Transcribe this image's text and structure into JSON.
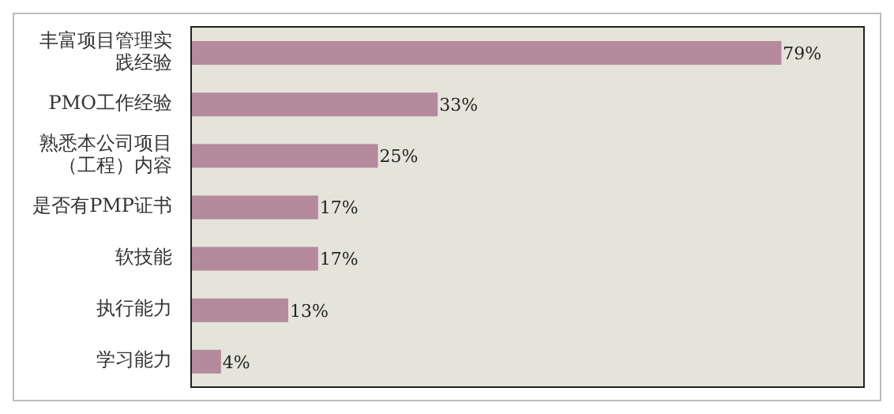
{
  "chart_data": {
    "type": "bar",
    "orientation": "horizontal",
    "categories": [
      "丰富项目管理实践经验",
      "PMO工作经验",
      "熟悉本公司项目（工程）内容",
      "是否有PMP证书",
      "软技能",
      "执行能力",
      "学习能力"
    ],
    "values": [
      79,
      33,
      25,
      17,
      17,
      13,
      4
    ],
    "value_labels": [
      "79%",
      "33%",
      "25%",
      "17%",
      "17%",
      "13%",
      "4%"
    ],
    "color": "#b48a9c"
  }
}
